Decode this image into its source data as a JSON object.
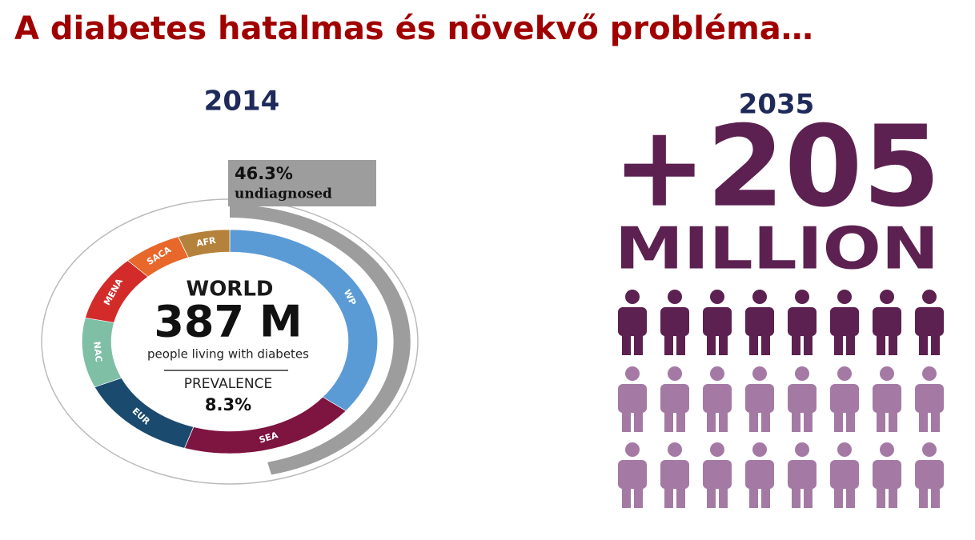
{
  "title": "A diabetes hatalmas és növekvő probléma…",
  "left": {
    "year": "2014",
    "undiagnosed": {
      "percent": {
        "value": 46.3,
        "label": "46.3%"
      },
      "label": "undiagnosed"
    },
    "center": {
      "heading": "WORLD",
      "total": "387 M",
      "caption": "people living with diabetes",
      "prevalence_label": "PREVALENCE",
      "prevalence": "8.3%"
    },
    "regions": [
      {
        "label": "WP",
        "value": 138.2,
        "color": "#5b9bd5"
      },
      {
        "label": "SEA",
        "value": 75,
        "color": "#7e1440"
      },
      {
        "label": "EUR",
        "value": 52,
        "color": "#1a4a6e"
      },
      {
        "label": "NAC",
        "value": 39,
        "color": "#7fbfa6"
      },
      {
        "label": "MENA",
        "value": 36.8,
        "color": "#d32a2a"
      },
      {
        "label": "SACA",
        "value": 25,
        "color": "#e8672a"
      },
      {
        "label": "AFR",
        "value": 22,
        "color": "#b5823b"
      }
    ]
  },
  "right": {
    "year": "2035",
    "increase": "+205",
    "unit": "MILLION"
  }
}
